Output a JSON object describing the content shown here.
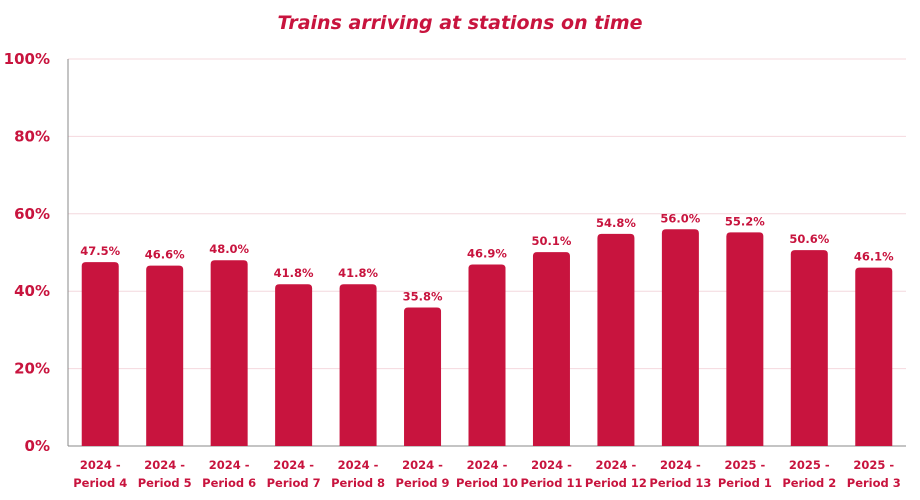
{
  "colors": {
    "accent": "#c8143e",
    "grid": "#f4d8de",
    "axis": "#888888"
  },
  "chart_data": {
    "type": "bar",
    "title": "Trains arriving at stations on time",
    "xlabel": "",
    "ylabel": "",
    "ylim": [
      0,
      100
    ],
    "yticks": [
      "0%",
      "20%",
      "40%",
      "60%",
      "80%",
      "100%"
    ],
    "grid": true,
    "categories": [
      [
        "2024 -",
        "Period 4"
      ],
      [
        "2024 -",
        "Period 5"
      ],
      [
        "2024 -",
        "Period 6"
      ],
      [
        "2024 -",
        "Period 7"
      ],
      [
        "2024 -",
        "Period 8"
      ],
      [
        "2024 -",
        "Period 9"
      ],
      [
        "2024 -",
        "Period 10"
      ],
      [
        "2024 -",
        "Period 11"
      ],
      [
        "2024 -",
        "Period 12"
      ],
      [
        "2024 -",
        "Period 13"
      ],
      [
        "2025 -",
        "Period 1"
      ],
      [
        "2025 -",
        "Period 2"
      ],
      [
        "2025 -",
        "Period 3"
      ]
    ],
    "values": [
      47.5,
      46.6,
      48.0,
      41.8,
      41.8,
      35.8,
      46.9,
      50.1,
      54.8,
      56.0,
      55.2,
      50.6,
      46.1
    ],
    "data_labels": [
      "47.5%",
      "46.6%",
      "48.0%",
      "41.8%",
      "41.8%",
      "35.8%",
      "46.9%",
      "50.1%",
      "54.8%",
      "56.0%",
      "55.2%",
      "50.6%",
      "46.1%"
    ]
  }
}
